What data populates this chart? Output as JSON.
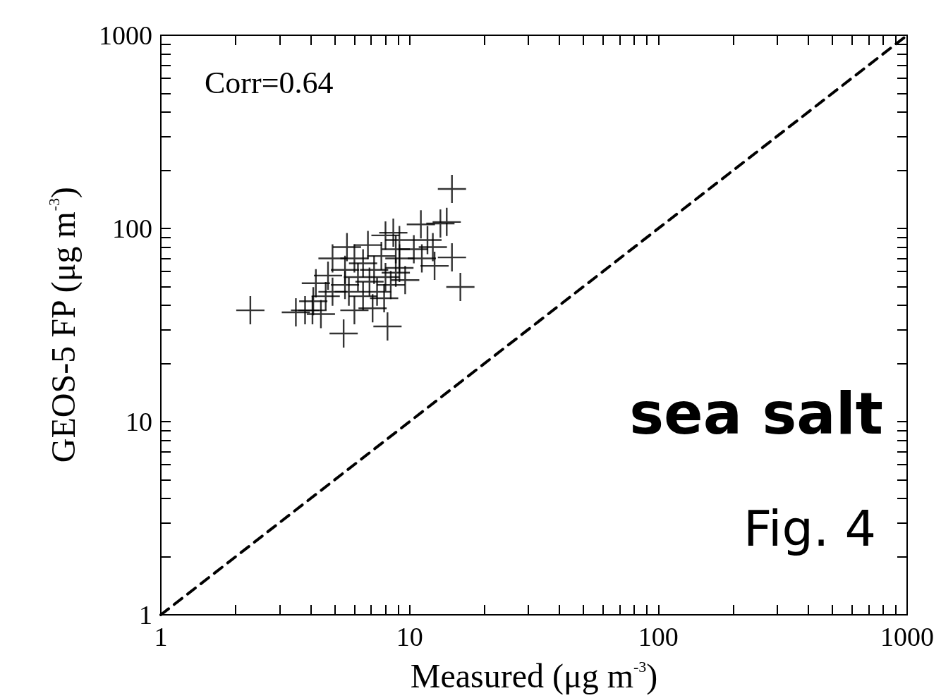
{
  "chart_data": {
    "type": "scatter",
    "xlabel": "Measured (μg m$^{-3}$)",
    "ylabel": "GEOS-5 FP (μg m$^{-3}$)",
    "annotations": [
      "Corr=0.64",
      "sea salt",
      "Fig. 4"
    ],
    "log": "xy",
    "grid": false,
    "marker": "cross",
    "xlim": [
      1,
      1000
    ],
    "ylim": [
      1,
      1000
    ],
    "xticks": [
      1,
      {
        "value": 2,
        "label": null
      },
      {
        "value": 3,
        "label": null
      },
      {
        "value": 4,
        "label": null
      },
      {
        "value": 5,
        "label": null
      },
      {
        "value": 6,
        "label": null
      },
      {
        "value": 7,
        "label": null
      },
      {
        "value": 8,
        "label": null
      },
      {
        "value": 9,
        "label": null
      },
      10,
      {
        "value": 20,
        "label": null
      },
      {
        "value": 30,
        "label": null
      },
      {
        "value": 40,
        "label": null
      },
      {
        "value": 50,
        "label": null
      },
      {
        "value": 60,
        "label": null
      },
      {
        "value": 70,
        "label": null
      },
      {
        "value": 80,
        "label": null
      },
      {
        "value": 90,
        "label": null
      },
      100,
      {
        "value": 200,
        "label": null
      },
      {
        "value": 300,
        "label": null
      },
      {
        "value": 400,
        "label": null
      },
      {
        "value": 500,
        "label": null
      },
      {
        "value": 600,
        "label": null
      },
      {
        "value": 700,
        "label": null
      },
      {
        "value": 800,
        "label": null
      },
      {
        "value": 900,
        "label": null
      },
      1000
    ],
    "yticks": [
      1,
      {
        "value": 2,
        "label": null
      },
      {
        "value": 3,
        "label": null
      },
      {
        "value": 4,
        "label": null
      },
      {
        "value": 5,
        "label": null
      },
      {
        "value": 6,
        "label": null
      },
      {
        "value": 7,
        "label": null
      },
      {
        "value": 8,
        "label": null
      },
      {
        "value": 9,
        "label": null
      },
      10,
      {
        "value": 20,
        "label": null
      },
      {
        "value": 30,
        "label": null
      },
      {
        "value": 40,
        "label": null
      },
      {
        "value": 50,
        "label": null
      },
      {
        "value": 60,
        "label": null
      },
      {
        "value": 70,
        "label": null
      },
      {
        "value": 80,
        "label": null
      },
      {
        "value": 90,
        "label": null
      },
      100,
      {
        "value": 200,
        "label": null
      },
      {
        "value": 300,
        "label": null
      },
      {
        "value": 400,
        "label": null
      },
      {
        "value": 500,
        "label": null
      },
      {
        "value": 600,
        "label": null
      },
      {
        "value": 700,
        "label": null
      },
      {
        "value": 800,
        "label": null
      },
      {
        "value": 900,
        "label": null
      },
      1000
    ],
    "series": [
      {
        "color": "#000000",
        "x": [
          2.29,
          14.8,
          16.0,
          5.43,
          8.15,
          3.49,
          4.07,
          14.8,
          13.3,
          11.1,
          14.1,
          12.4,
          8.6,
          9.1,
          11.2,
          12.6,
          5.6,
          6.8,
          8.0,
          4.9,
          4.2,
          4.7,
          5.5,
          6.2,
          7.2,
          8.0,
          8.4,
          9.6,
          5.7,
          6.5,
          7.4,
          4.6,
          4.1,
          4.4,
          6.0,
          7.1,
          7.9,
          8.8,
          9.1,
          7.7,
          6.5,
          10.4,
          8.8,
          5.5,
          4.9,
          6.9,
          9.1,
          6.0,
          3.8,
          11.8
        ],
        "values": [
          37.7,
          160,
          49.8,
          28.6,
          31.1,
          36.8,
          37.7,
          70.8,
          106,
          105,
          108,
          80,
          95,
          87,
          70,
          64,
          80,
          82,
          92,
          70,
          52,
          57,
          61,
          56,
          61,
          56,
          51,
          54,
          47,
          44.6,
          47,
          44.6,
          42,
          36,
          37.7,
          38.6,
          43.5,
          59,
          70,
          72,
          66,
          78,
          78,
          51,
          47,
          53,
          62.5,
          70,
          37.7,
          87
        ]
      },
      {
        "type": "line",
        "color": "#000000",
        "line_style": "dashed",
        "marker": "none",
        "x": [
          1,
          1000
        ],
        "values": [
          1,
          1000
        ]
      }
    ]
  }
}
